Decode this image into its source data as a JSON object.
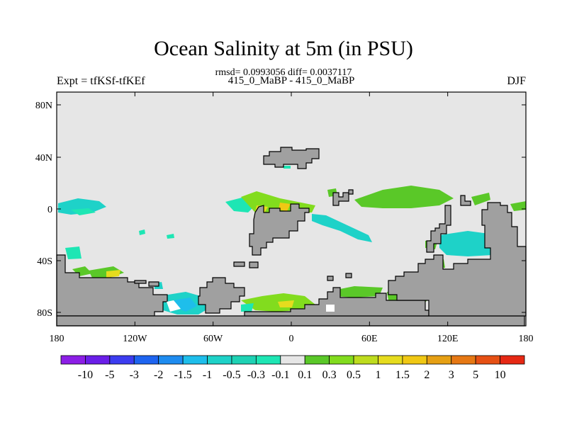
{
  "title": "Ocean Salinity at 5m (in PSU)",
  "subtitle": "rmsd= 0.0993056 diff= 0.0037117",
  "left_string": "Expt = tfKSf-tfKEf",
  "center_string": "415_0_MaBP - 415_0_MaBP",
  "right_string": "DJF",
  "colors": {
    "background_ocean": "#e6e6e6",
    "land": "#a0a0a0",
    "frame": "#000000"
  },
  "axes": {
    "x_ticks": [
      "180",
      "120W",
      "60W",
      "0",
      "60E",
      "120E",
      "180"
    ],
    "y_ticks": [
      "80N",
      "40N",
      "0",
      "40S",
      "80S"
    ]
  },
  "colorbar": {
    "labels": [
      "-10",
      "-5",
      "-3",
      "-2",
      "-1.5",
      "-1",
      "-0.5",
      "-0.3",
      "-0.1",
      "0.1",
      "0.3",
      "0.5",
      "1",
      "1.5",
      "2",
      "3",
      "5",
      "10"
    ],
    "colors": [
      "#8c1ee6",
      "#6a1ee8",
      "#3c3cf0",
      "#1e64f0",
      "#1e8cf0",
      "#1ebeeb",
      "#1ed2c8",
      "#1ed2b4",
      "#1ee6b4",
      "#e6e6e6",
      "#5ac828",
      "#82dc1e",
      "#bedc1e",
      "#e6dc1e",
      "#f0c814",
      "#e6a014",
      "#e67814",
      "#e65014",
      "#e62814"
    ]
  }
}
